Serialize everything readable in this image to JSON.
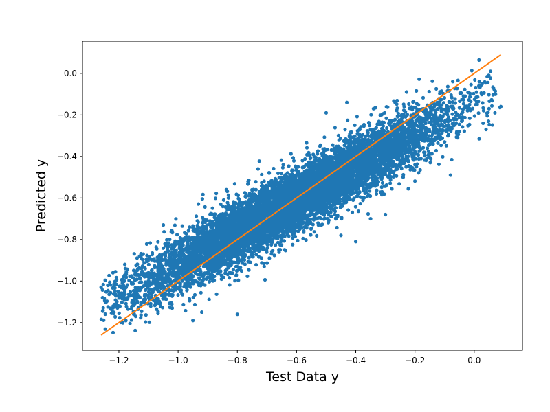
{
  "chart_data": {
    "type": "scatter",
    "title": "",
    "xlabel": "Test Data y",
    "ylabel": "Predicted y",
    "xlim": [
      -1.323,
      0.163
    ],
    "ylim": [
      -1.333,
      0.155
    ],
    "xticks": [
      -1.2,
      -1.0,
      -0.8,
      -0.6,
      -0.4,
      -0.2,
      0.0
    ],
    "yticks": [
      -1.2,
      -1.0,
      -0.8,
      -0.6,
      -0.4,
      -0.2,
      0.0
    ],
    "xtick_labels": [
      "−1.2",
      "−1.0",
      "−0.8",
      "−0.6",
      "−0.4",
      "−0.2",
      "0.0"
    ],
    "ytick_labels": [
      "−1.2",
      "−1.0",
      "−0.8",
      "−0.6",
      "−0.4",
      "−0.2",
      "0.0"
    ],
    "grid": false,
    "colors": {
      "scatter": "#1f77b4",
      "line": "#ff7f0e"
    },
    "series": [
      {
        "kind": "scatter",
        "cloud": {
          "count": 9000,
          "x_range": [
            -1.26,
            0.09
          ],
          "y_fit": {
            "slope": 0.78,
            "intercept": -0.14
          },
          "residual_sd": 0.075
        },
        "outliers": [
          [
            -1.26,
            -1.03
          ],
          [
            -1.22,
            -0.96
          ],
          [
            -1.18,
            -0.92
          ],
          [
            -1.17,
            -1.08
          ],
          [
            -1.15,
            -1.16
          ],
          [
            -1.13,
            -0.88
          ],
          [
            -1.1,
            -0.96
          ],
          [
            -1.05,
            -0.73
          ],
          [
            -1.02,
            -1.13
          ],
          [
            -0.95,
            -1.19
          ],
          [
            -0.92,
            -1.15
          ],
          [
            -0.8,
            -1.16
          ],
          [
            -0.83,
            -0.6
          ],
          [
            -0.73,
            -0.46
          ],
          [
            -0.58,
            -0.42
          ],
          [
            -0.5,
            -0.19
          ],
          [
            -0.45,
            -0.78
          ],
          [
            -0.4,
            -0.81
          ],
          [
            -0.35,
            -0.7
          ],
          [
            -0.3,
            -0.68
          ],
          [
            -0.24,
            -0.5
          ],
          [
            -0.08,
            -0.49
          ],
          [
            -0.2,
            -0.44
          ],
          [
            -0.03,
            -0.16
          ],
          [
            0.01,
            -0.15
          ],
          [
            0.05,
            -0.17
          ],
          [
            0.09,
            -0.16
          ],
          [
            0.07,
            -0.19
          ],
          [
            0.03,
            -0.24
          ],
          [
            0.04,
            -0.27
          ],
          [
            -0.05,
            -0.28
          ],
          [
            -0.1,
            -0.33
          ],
          [
            -0.17,
            -0.38
          ],
          [
            -0.34,
            -0.17
          ],
          [
            -0.43,
            -0.14
          ]
        ]
      },
      {
        "kind": "line",
        "x": [
          -1.26,
          0.09
        ],
        "y": [
          -1.26,
          0.09
        ]
      }
    ]
  }
}
